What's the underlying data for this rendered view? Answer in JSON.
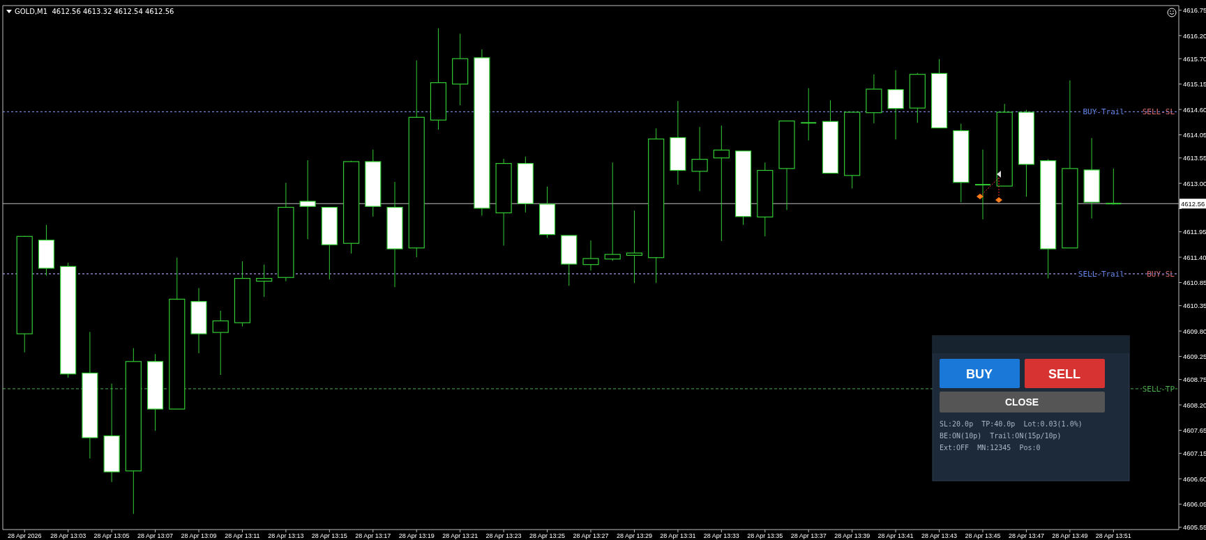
{
  "chart_data": [
    {
      "type": "candlestick",
      "title": "GOLD,M1  4612.56 4613.32 4612.54 4612.56",
      "color": "#33cc33",
      "x": [
        "2026-04-28T13:01",
        "2026-04-28T13:02",
        "2026-04-28T13:03",
        "2026-04-28T13:04",
        "2026-04-28T13:05",
        "2026-04-28T13:06",
        "2026-04-28T13:07",
        "2026-04-28T13:08",
        "2026-04-28T13:09",
        "2026-04-28T13:10",
        "2026-04-28T13:11",
        "2026-04-28T13:12",
        "2026-04-28T13:13",
        "2026-04-28T13:14",
        "2026-04-28T13:15",
        "2026-04-28T13:16",
        "2026-04-28T13:17",
        "2026-04-28T13:18",
        "2026-04-28T13:19",
        "2026-04-28T13:20",
        "2026-04-28T13:21",
        "2026-04-28T13:22",
        "2026-04-28T13:23",
        "2026-04-28T13:24",
        "2026-04-28T13:25",
        "2026-04-28T13:26",
        "2026-04-28T13:27",
        "2026-04-28T13:28",
        "2026-04-28T13:29",
        "2026-04-28T13:30",
        "2026-04-28T13:31",
        "2026-04-28T13:32",
        "2026-04-28T13:33",
        "2026-04-28T13:34",
        "2026-04-28T13:35",
        "2026-04-28T13:36",
        "2026-04-28T13:37",
        "2026-04-28T13:38",
        "2026-04-28T13:39",
        "2026-04-28T13:40",
        "2026-04-28T13:41",
        "2026-04-28T13:42",
        "2026-04-28T13:43",
        "2026-04-28T13:44",
        "2026-04-28T13:45",
        "2026-04-28T13:46",
        "2026-04-28T13:47",
        "2026-04-28T13:48",
        "2026-04-28T13:49",
        "2026-04-28T13:50",
        "2026-04-28T13:51"
      ],
      "ohlc": [
        [
          4609.74,
          4611.86,
          4609.34,
          4611.85
        ],
        [
          4611.77,
          4612.1,
          4611.0,
          4611.16
        ],
        [
          4611.2,
          4611.28,
          4608.79,
          4608.87
        ],
        [
          4608.89,
          4609.78,
          4607.04,
          4607.49
        ],
        [
          4607.53,
          4608.66,
          4606.53,
          4606.75
        ],
        [
          4606.77,
          4609.43,
          4605.84,
          4609.14
        ],
        [
          4609.14,
          4609.3,
          4607.64,
          4608.11
        ],
        [
          4608.11,
          4611.39,
          4608.11,
          4610.49
        ],
        [
          4610.44,
          4610.73,
          4609.32,
          4609.74
        ],
        [
          4609.77,
          4610.24,
          4608.85,
          4610.02
        ],
        [
          4609.98,
          4611.31,
          4609.9,
          4610.94
        ],
        [
          4610.88,
          4611.24,
          4610.54,
          4610.94
        ],
        [
          4610.96,
          4613.01,
          4610.88,
          4612.48
        ],
        [
          4612.61,
          4613.5,
          4611.79,
          4612.5
        ],
        [
          4612.48,
          4612.48,
          4610.92,
          4611.67
        ],
        [
          4611.7,
          4613.49,
          4611.48,
          4613.47
        ],
        [
          4613.47,
          4613.73,
          4612.28,
          4612.5
        ],
        [
          4612.48,
          4613.03,
          4610.75,
          4611.58
        ],
        [
          4611.6,
          4615.66,
          4611.4,
          4614.43
        ],
        [
          4614.37,
          4616.36,
          4614.16,
          4615.18
        ],
        [
          4615.15,
          4616.24,
          4614.69,
          4615.7
        ],
        [
          4615.72,
          4615.9,
          4612.3,
          4612.46
        ],
        [
          4612.36,
          4613.53,
          4611.65,
          4613.43
        ],
        [
          4613.43,
          4613.58,
          4612.37,
          4612.56
        ],
        [
          4612.55,
          4612.93,
          4611.82,
          4611.89
        ],
        [
          4611.87,
          4611.87,
          4610.78,
          4611.25
        ],
        [
          4611.24,
          4611.76,
          4611.11,
          4611.37
        ],
        [
          4611.36,
          4613.45,
          4611.32,
          4611.46
        ],
        [
          4611.44,
          4612.41,
          4610.84,
          4611.49
        ],
        [
          4611.39,
          4614.19,
          4610.84,
          4613.96
        ],
        [
          4613.99,
          4614.78,
          4612.97,
          4613.28
        ],
        [
          4613.26,
          4614.22,
          4612.83,
          4613.52
        ],
        [
          4613.55,
          4614.25,
          4611.75,
          4613.72
        ],
        [
          4613.7,
          4613.7,
          4612.1,
          4612.28
        ],
        [
          4612.27,
          4613.45,
          4611.85,
          4613.28
        ],
        [
          4613.32,
          4614.36,
          4612.42,
          4614.35
        ],
        [
          4614.31,
          4615.06,
          4613.93,
          4614.31
        ],
        [
          4614.34,
          4614.8,
          4613.22,
          4613.22
        ],
        [
          4613.17,
          4614.54,
          4612.89,
          4614.54
        ],
        [
          4614.53,
          4615.36,
          4614.3,
          4615.04
        ],
        [
          4615.03,
          4615.45,
          4613.95,
          4614.62
        ],
        [
          4614.63,
          4615.39,
          4614.31,
          4615.36
        ],
        [
          4615.38,
          4615.69,
          4614.2,
          4614.2
        ],
        [
          4614.14,
          4614.29,
          4612.59,
          4613.02
        ],
        [
          4612.97,
          4613.73,
          4612.22,
          4612.97
        ],
        [
          4612.94,
          4614.72,
          4612.94,
          4614.54
        ],
        [
          4614.54,
          4614.59,
          4612.71,
          4613.41
        ],
        [
          4613.49,
          4613.52,
          4610.94,
          4611.58
        ],
        [
          4611.6,
          4615.23,
          4611.6,
          4613.32
        ],
        [
          4613.29,
          4613.98,
          4612.24,
          4612.59
        ],
        [
          4612.56,
          4613.32,
          4612.54,
          4612.56
        ]
      ],
      "xlim": [
        "2026-04-28T13:00",
        "2026-04-28T13:54"
      ],
      "xticks": [
        {
          "value": "2026-04-28T13:01",
          "label": "28 Apr 2026"
        },
        {
          "value": "2026-04-28T13:03",
          "label": "28 Apr 13:03"
        },
        {
          "value": "2026-04-28T13:05",
          "label": "28 Apr 13:05"
        },
        {
          "value": "2026-04-28T13:07",
          "label": "28 Apr 13:07"
        },
        {
          "value": "2026-04-28T13:09",
          "label": "28 Apr 13:09"
        },
        {
          "value": "2026-04-28T13:11",
          "label": "28 Apr 13:11"
        },
        {
          "value": "2026-04-28T13:13",
          "label": "28 Apr 13:13"
        },
        {
          "value": "2026-04-28T13:15",
          "label": "28 Apr 13:15"
        },
        {
          "value": "2026-04-28T13:17",
          "label": "28 Apr 13:17"
        },
        {
          "value": "2026-04-28T13:19",
          "label": "28 Apr 13:19"
        },
        {
          "value": "2026-04-28T13:21",
          "label": "28 Apr 13:21"
        },
        {
          "value": "2026-04-28T13:23",
          "label": "28 Apr 13:23"
        },
        {
          "value": "2026-04-28T13:25",
          "label": "28 Apr 13:25"
        },
        {
          "value": "2026-04-28T13:27",
          "label": "28 Apr 13:27"
        },
        {
          "value": "2026-04-28T13:29",
          "label": "28 Apr 13:29"
        },
        {
          "value": "2026-04-28T13:31",
          "label": "28 Apr 13:31"
        },
        {
          "value": "2026-04-28T13:33",
          "label": "28 Apr 13:33"
        },
        {
          "value": "2026-04-28T13:35",
          "label": "28 Apr 13:35"
        },
        {
          "value": "2026-04-28T13:37",
          "label": "28 Apr 13:37"
        },
        {
          "value": "2026-04-28T13:39",
          "label": "28 Apr 13:39"
        },
        {
          "value": "2026-04-28T13:41",
          "label": "28 Apr 13:41"
        },
        {
          "value": "2026-04-28T13:43",
          "label": "28 Apr 13:43"
        },
        {
          "value": "2026-04-28T13:45",
          "label": "28 Apr 13:45"
        },
        {
          "value": "2026-04-28T13:47",
          "label": "28 Apr 13:47"
        },
        {
          "value": "2026-04-28T13:49",
          "label": "28 Apr 13:49"
        },
        {
          "value": "2026-04-28T13:51",
          "label": "28 Apr 13:51"
        }
      ],
      "ylim": [
        4605.5,
        4616.85
      ],
      "yticks": [
        4616.75,
        {
          "value": 4616.2,
          "label": "4616.20"
        },
        {
          "value": 4615.7,
          "label": "4615.70"
        },
        4615.15,
        {
          "value": 4614.6,
          "label": "4614.60"
        },
        4614.05,
        4613.55,
        {
          "value": 4613,
          "label": "4613.00"
        },
        {
          "value": 4612.45,
          "label": null
        },
        4611.95,
        {
          "value": 4611.4,
          "label": "4611.40"
        },
        4610.85,
        4610.35,
        {
          "value": 4609.8,
          "label": "4609.80"
        },
        4609.25,
        4608.75,
        {
          "value": 4608.2,
          "label": "4608.20"
        },
        4607.65,
        4607.15,
        {
          "value": 4606.6,
          "label": "4606.60"
        },
        4606.05,
        4605.55
      ],
      "ref_lines": [
        {
          "axis": "y",
          "value": 4614.55,
          "label": "SELL-SL",
          "color": "#e07070",
          "line_style": "dotted"
        },
        {
          "axis": "y",
          "value": 4614.55,
          "label": "BUY-Trail",
          "color": "#6688ee",
          "line_style": "dotted"
        },
        {
          "axis": "y",
          "value": 4611.04,
          "label": "BUY-SL",
          "color": "#e07070",
          "line_style": "dotted"
        },
        {
          "axis": "y",
          "value": 4611.04,
          "label": "SELL-Trail",
          "color": "#6688ee",
          "line_style": "dotted"
        },
        {
          "axis": "y",
          "value": 4608.55,
          "label": "SELL-TP",
          "color": "#4caf50",
          "line_style": "dashed"
        },
        {
          "axis": "y",
          "value": 4612.56,
          "label": "4612.56",
          "color": "#c0c0c0",
          "line_style": "solid"
        }
      ],
      "grid": false
    },
    {
      "type": "other",
      "annotations": [
        "BUY",
        "SELL",
        "CLOSE",
        "SL:20.0p  TP:40.0p  Lot:0.03(1.0%)",
        "BE:ON(10p)  Trail:ON(15p/10p)",
        "Ext:OFF  MN:12345  Pos:0"
      ]
    }
  ]
}
